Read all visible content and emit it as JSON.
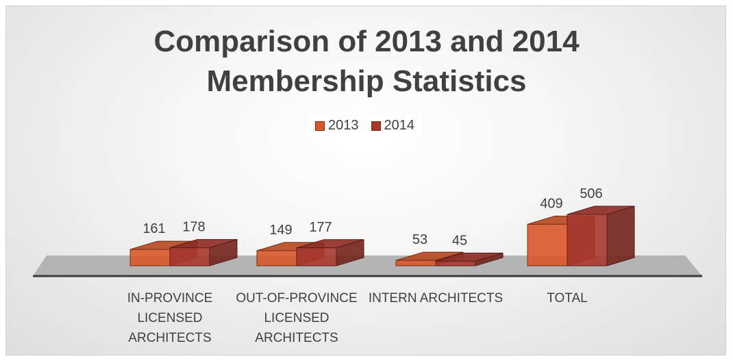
{
  "chart_data": {
    "type": "bar",
    "title": "Comparison of 2013 and 2014 Membership Statistics",
    "categories": [
      [
        "IN-PROVINCE",
        "LICENSED",
        "ARCHITECTS"
      ],
      [
        "OUT-OF-PROVINCE",
        "LICENSED",
        "ARCHITECTS"
      ],
      [
        "INTERN ARCHITECTS"
      ],
      [
        "TOTAL"
      ]
    ],
    "series": [
      {
        "name": "2013",
        "values": [
          161,
          149,
          53,
          409
        ],
        "color": "#d9582a"
      },
      {
        "name": "2014",
        "values": [
          178,
          177,
          45,
          506
        ],
        "color": "#a8382e"
      }
    ],
    "legend": "top-center",
    "grid": false,
    "three_d": true
  }
}
